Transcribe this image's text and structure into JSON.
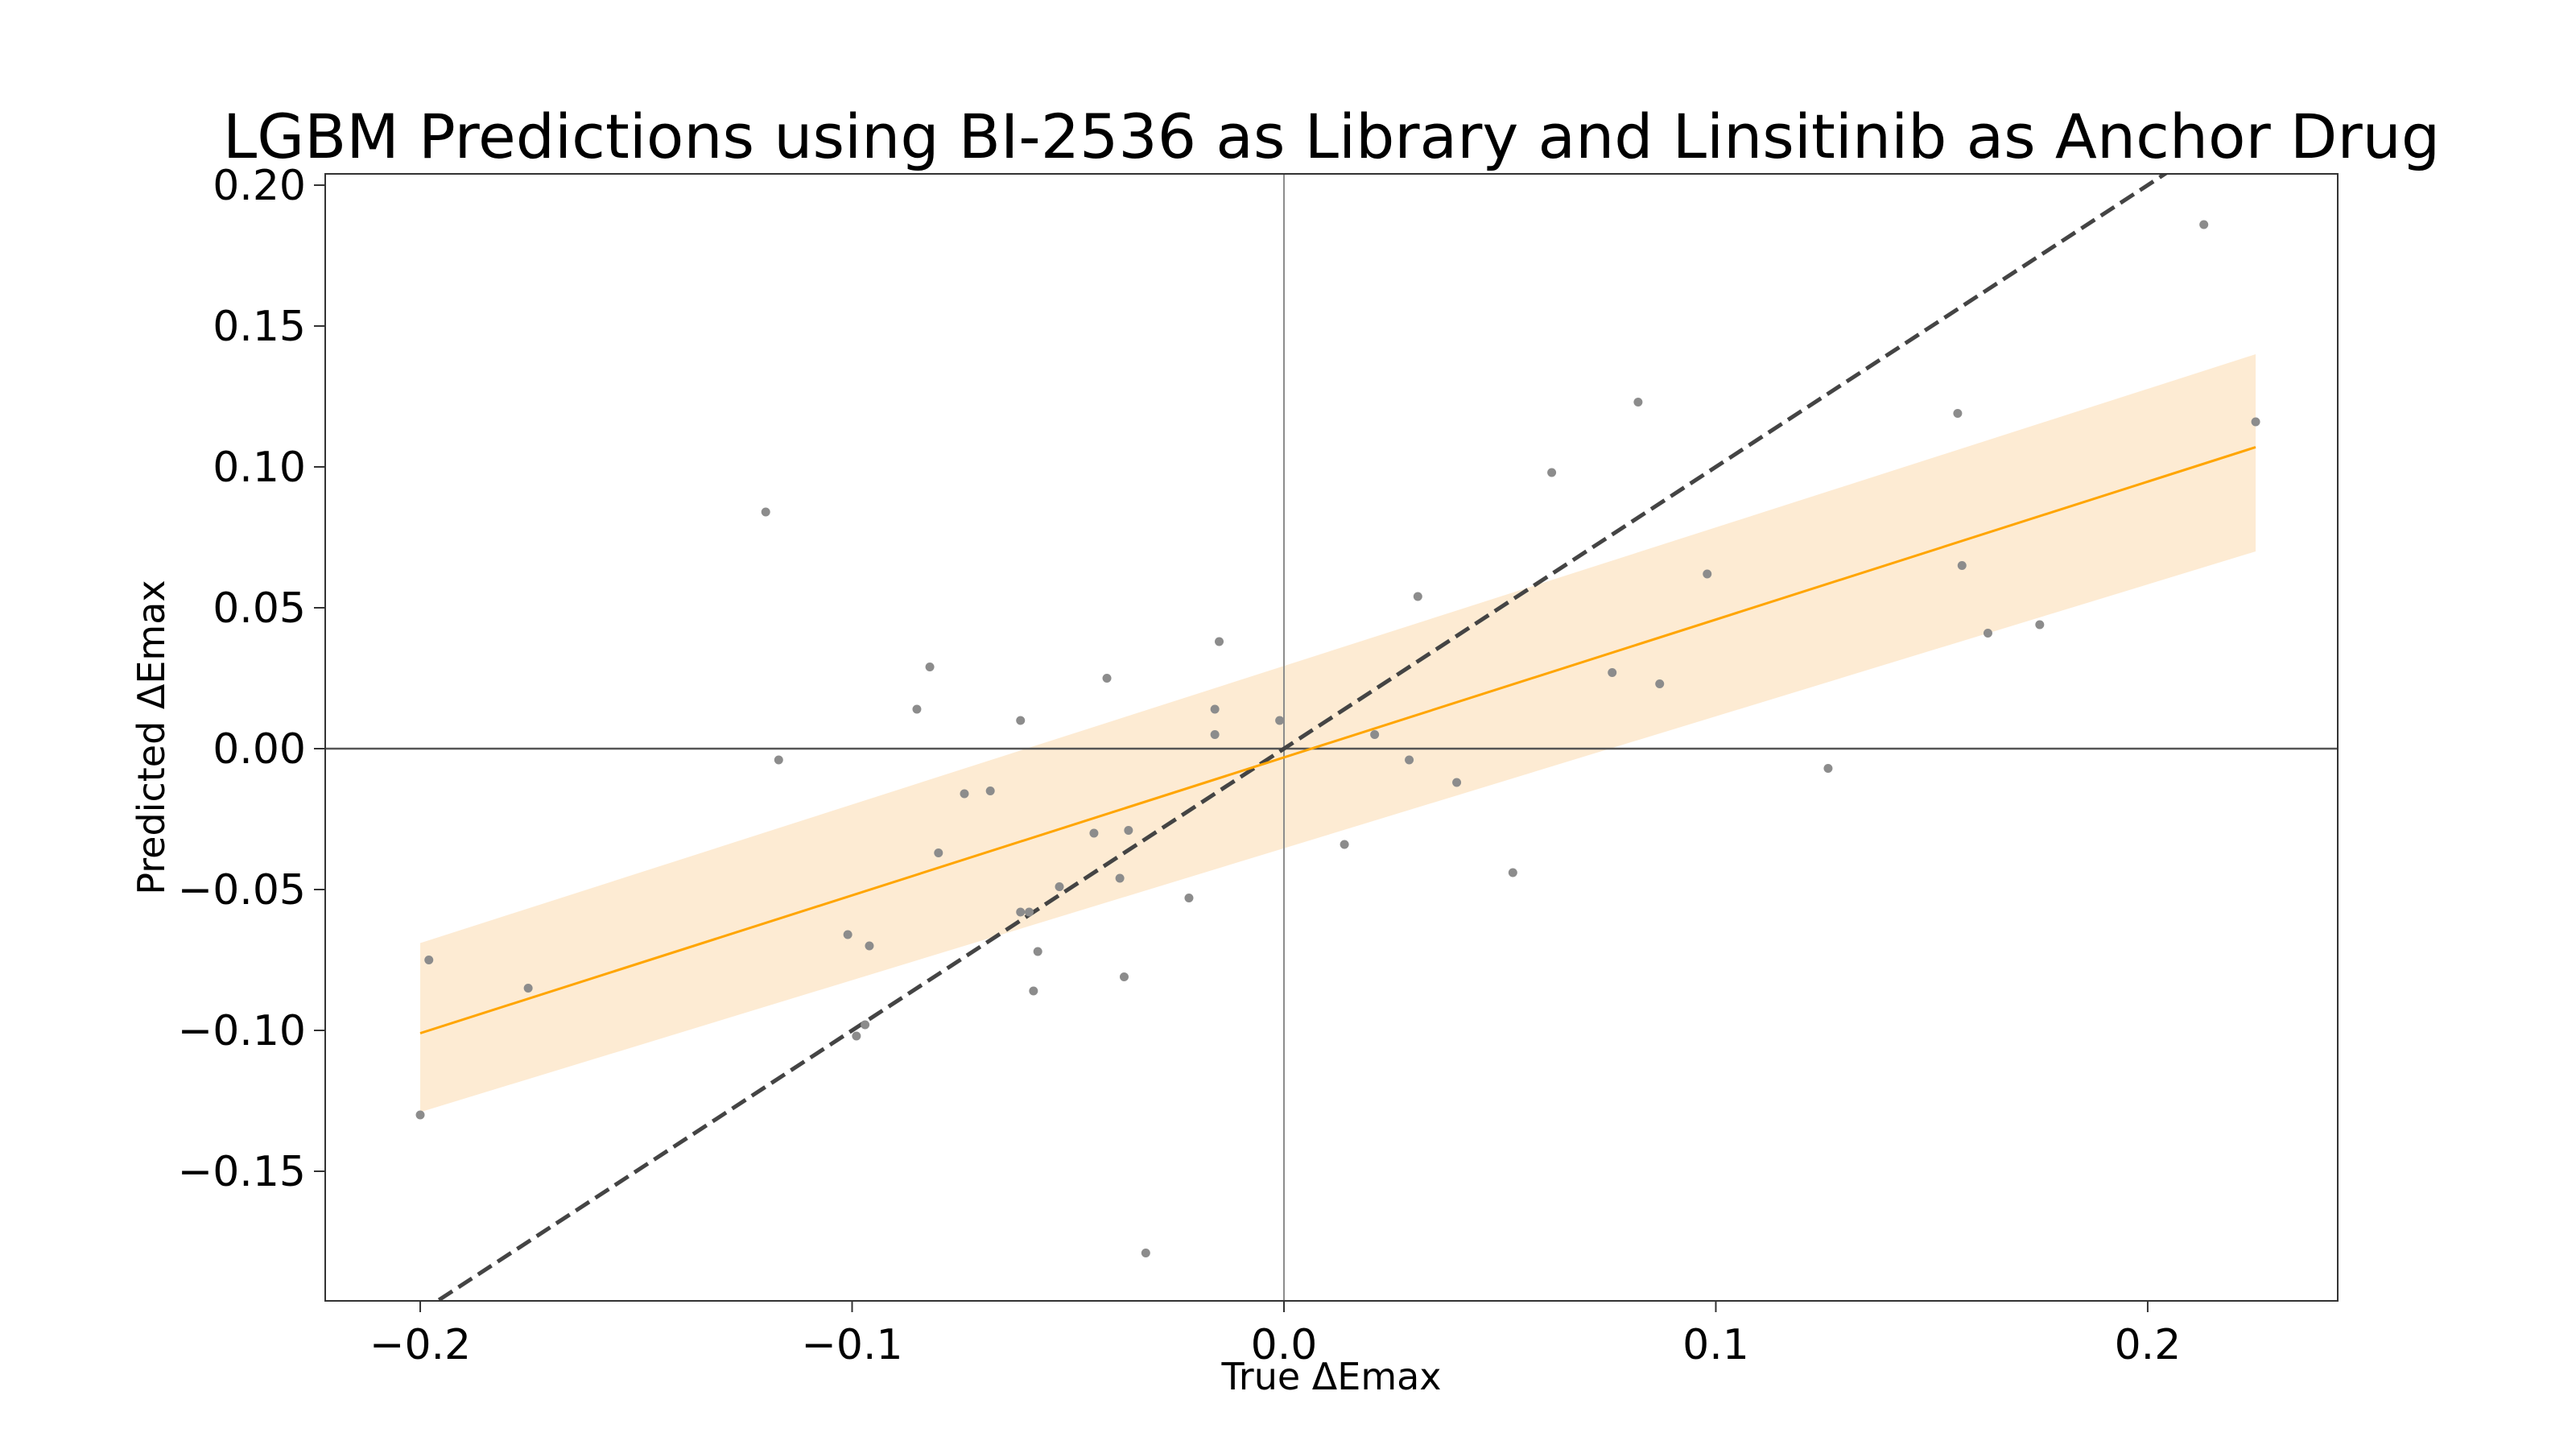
{
  "chart_data": {
    "type": "scatter",
    "title": "LGBM Predictions using BI-2536 as Library and Linsitinib as Anchor Drug",
    "xlabel": "True ΔEmax",
    "ylabel": "Predicted ΔEmax",
    "xlim": [
      -0.222,
      0.244
    ],
    "ylim": [
      -0.196,
      0.204
    ],
    "grid": false,
    "x_ticks": [
      -0.2,
      -0.1,
      0.0,
      0.1,
      0.2
    ],
    "x_tick_labels": [
      "−0.2",
      "−0.1",
      "0.0",
      "0.1",
      "0.2"
    ],
    "y_ticks": [
      -0.15,
      -0.1,
      -0.05,
      0.0,
      0.05,
      0.1,
      0.15,
      0.2
    ],
    "y_tick_labels": [
      "−0.15",
      "−0.10",
      "−0.05",
      "0.00",
      "0.05",
      "0.10",
      "0.15",
      "0.20"
    ],
    "reference_lines": {
      "identity_line": "y = x, dashed, dark grey",
      "zero_lines": "x = 0 and y = 0"
    },
    "regression": {
      "x_range": [
        -0.2,
        0.225
      ],
      "line_y": [
        -0.101,
        0.107
      ],
      "ci_lower": [
        -0.129,
        0.07
      ],
      "ci_upper": [
        -0.069,
        0.14
      ],
      "line_color": "#FFA500",
      "band_color": "#FDEBD3"
    },
    "point_color": "#8c8c8c",
    "points": [
      {
        "x": -0.2,
        "y": -0.13
      },
      {
        "x": -0.198,
        "y": -0.075
      },
      {
        "x": -0.175,
        "y": -0.085
      },
      {
        "x": -0.12,
        "y": 0.084
      },
      {
        "x": -0.117,
        "y": -0.004
      },
      {
        "x": -0.101,
        "y": -0.066
      },
      {
        "x": -0.099,
        "y": -0.102
      },
      {
        "x": -0.097,
        "y": -0.098
      },
      {
        "x": -0.096,
        "y": -0.07
      },
      {
        "x": -0.085,
        "y": 0.014
      },
      {
        "x": -0.082,
        "y": 0.029
      },
      {
        "x": -0.08,
        "y": -0.037
      },
      {
        "x": -0.074,
        "y": -0.016
      },
      {
        "x": -0.068,
        "y": -0.015
      },
      {
        "x": -0.061,
        "y": 0.01
      },
      {
        "x": -0.061,
        "y": -0.058
      },
      {
        "x": -0.059,
        "y": -0.058
      },
      {
        "x": -0.058,
        "y": -0.086
      },
      {
        "x": -0.057,
        "y": -0.072
      },
      {
        "x": -0.052,
        "y": -0.049
      },
      {
        "x": -0.044,
        "y": -0.03
      },
      {
        "x": -0.041,
        "y": 0.025
      },
      {
        "x": -0.038,
        "y": -0.046
      },
      {
        "x": -0.037,
        "y": -0.081
      },
      {
        "x": -0.036,
        "y": -0.029
      },
      {
        "x": -0.032,
        "y": -0.179
      },
      {
        "x": -0.022,
        "y": -0.053
      },
      {
        "x": -0.016,
        "y": 0.005
      },
      {
        "x": -0.016,
        "y": 0.014
      },
      {
        "x": -0.015,
        "y": 0.038
      },
      {
        "x": -0.001,
        "y": 0.01
      },
      {
        "x": 0.014,
        "y": -0.034
      },
      {
        "x": 0.021,
        "y": 0.005
      },
      {
        "x": 0.029,
        "y": -0.004
      },
      {
        "x": 0.031,
        "y": 0.054
      },
      {
        "x": 0.04,
        "y": -0.012
      },
      {
        "x": 0.053,
        "y": -0.044
      },
      {
        "x": 0.062,
        "y": 0.098
      },
      {
        "x": 0.076,
        "y": 0.027
      },
      {
        "x": 0.082,
        "y": 0.123
      },
      {
        "x": 0.087,
        "y": 0.023
      },
      {
        "x": 0.098,
        "y": 0.062
      },
      {
        "x": 0.126,
        "y": -0.007
      },
      {
        "x": 0.156,
        "y": 0.119
      },
      {
        "x": 0.157,
        "y": 0.065
      },
      {
        "x": 0.163,
        "y": 0.041
      },
      {
        "x": 0.175,
        "y": 0.044
      },
      {
        "x": 0.213,
        "y": 0.186
      },
      {
        "x": 0.225,
        "y": 0.116
      }
    ]
  }
}
